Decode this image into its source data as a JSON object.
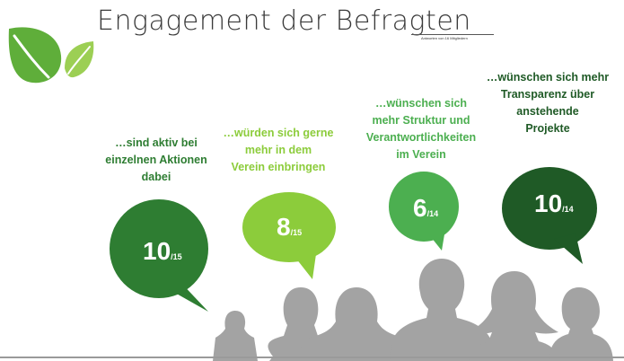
{
  "title": "Engagement der Befragten",
  "subtitle": "Antworten von 16 Mitgliedern",
  "colors": {
    "dark_green": "#2e7d32",
    "light_green": "#8ccc3b",
    "mid_green": "#4caf50",
    "darkest_green": "#1f5a26",
    "people_gray": "#a3a3a3"
  },
  "icons": [
    "leaf-icon",
    "speech-bubble-icon",
    "person-silhouette-icon"
  ],
  "items": [
    {
      "caption": "…sind aktiv bei\neinzelnen Aktionen\ndabei",
      "value": "10",
      "total": "/15",
      "color": "#2e7d32"
    },
    {
      "caption": "…würden sich gerne\nmehr in dem\nVerein einbringen",
      "value": "8",
      "total": "/15",
      "color": "#8ccc3b"
    },
    {
      "caption": "…wünschen sich\nmehr Struktur und\nVerantwortlichkeiten\nim Verein",
      "value": "6",
      "total": "/14",
      "color": "#4caf50"
    },
    {
      "caption": "…wünschen sich mehr\nTransparenz über\nanstehende\nProjekte",
      "value": "10",
      "total": "/14",
      "color": "#1f5a26"
    }
  ]
}
